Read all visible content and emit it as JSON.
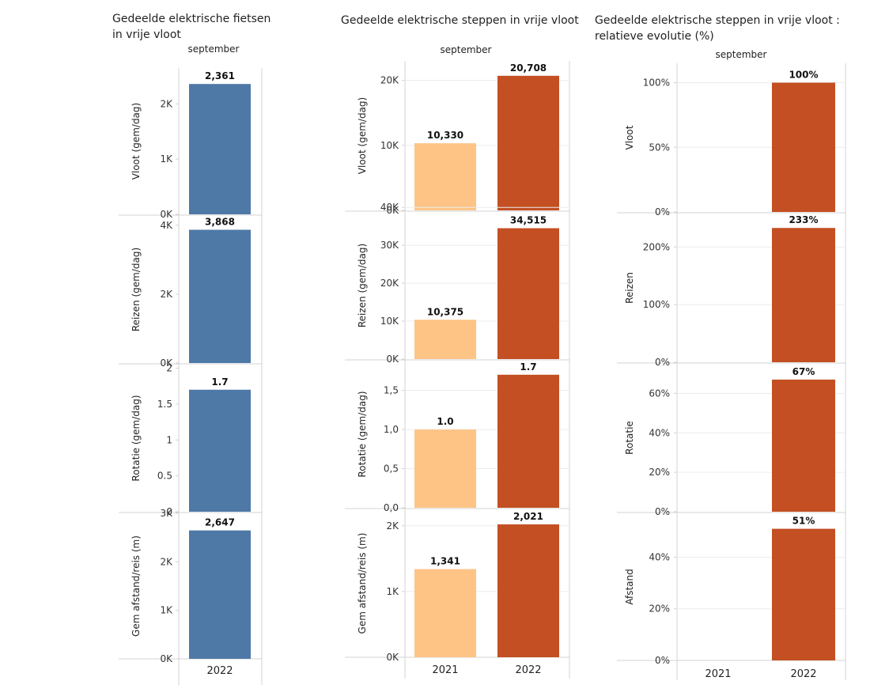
{
  "colors": {
    "blue": "#4e79a7",
    "light_orange": "#fdc486",
    "dark_orange": "#c34f22",
    "axis_line": "#d3d3d3",
    "grid": "#ececec"
  },
  "chart_data": [
    {
      "id": "fietsen",
      "type": "bar",
      "title_lines": [
        "Gedeelde elektrische fietsen",
        "in vrije vloot"
      ],
      "period": "september",
      "categories": [
        "2022"
      ],
      "panels": [
        {
          "ylabel": "Vloot (gem/dag)",
          "ylim": [
            0,
            2650
          ],
          "ticks": [
            0,
            1000,
            2000
          ],
          "tick_labels": [
            "0K",
            "1K",
            "2K"
          ],
          "values": [
            2361
          ],
          "value_labels": [
            "2,361"
          ],
          "colors": [
            "blue"
          ]
        },
        {
          "ylabel": "Reizen (gem/dag)",
          "ylim": [
            0,
            4270
          ],
          "ticks": [
            0,
            2000,
            4000
          ],
          "tick_labels": [
            "0K",
            "2K",
            "4K"
          ],
          "values": [
            3868
          ],
          "value_labels": [
            "3,868"
          ],
          "colors": [
            "blue"
          ]
        },
        {
          "ylabel": "Rotatie (gem/dag)",
          "ylim": [
            0,
            2.05
          ],
          "ticks": [
            0,
            0.5,
            1,
            1.5,
            2
          ],
          "tick_labels": [
            "0",
            "0.5",
            "1",
            "1.5",
            "2"
          ],
          "values": [
            1.7
          ],
          "value_labels": [
            "1.7"
          ],
          "colors": [
            "blue"
          ]
        },
        {
          "ylabel": "Gem afstand/reis (m)",
          "ylim": [
            0,
            3000
          ],
          "ticks": [
            0,
            1000,
            2000,
            3000
          ],
          "tick_labels": [
            "0K",
            "1K",
            "2K",
            "3K"
          ],
          "values": [
            2647
          ],
          "value_labels": [
            "2,647"
          ],
          "colors": [
            "blue"
          ]
        }
      ]
    },
    {
      "id": "steppen",
      "type": "bar",
      "title_lines": [
        "Gedeelde elektrische steppen in vrije vloot"
      ],
      "period": "september",
      "categories": [
        "2021",
        "2022"
      ],
      "panels": [
        {
          "ylabel": "Vloot (gem/dag)",
          "ylim": [
            0,
            23000
          ],
          "ticks": [
            0,
            10000,
            20000
          ],
          "tick_labels": [
            "0K",
            "10K",
            "20K"
          ],
          "values": [
            10330,
            20708
          ],
          "value_labels": [
            "10,330",
            "20,708"
          ],
          "colors": [
            "light_orange",
            "dark_orange"
          ]
        },
        {
          "ylabel": "Reizen (gem/dag)",
          "ylim": [
            0,
            38800
          ],
          "ticks": [
            0,
            10000,
            20000,
            30000,
            40000
          ],
          "tick_labels": [
            "0K",
            "10K",
            "20K",
            "30K",
            "40K"
          ],
          "values": [
            10375,
            34515
          ],
          "value_labels": [
            "10,375",
            "34,515"
          ],
          "colors": [
            "light_orange",
            "dark_orange"
          ]
        },
        {
          "ylabel": "Rotatie (gem/dag)",
          "ylim": [
            0,
            1.88
          ],
          "ticks": [
            0,
            0.5,
            1.0,
            1.5
          ],
          "tick_labels": [
            "0,0",
            "0,5",
            "1,0",
            "1,5"
          ],
          "values": [
            1.0,
            1.7
          ],
          "value_labels": [
            "1.0",
            "1.7"
          ],
          "colors": [
            "light_orange",
            "dark_orange"
          ]
        },
        {
          "ylabel": "Gem afstand/reis (m)",
          "ylim": [
            0,
            2250
          ],
          "ticks": [
            0,
            1000,
            2000
          ],
          "tick_labels": [
            "0K",
            "1K",
            "2K"
          ],
          "values": [
            1341,
            2021
          ],
          "value_labels": [
            "1,341",
            "2,021"
          ],
          "colors": [
            "light_orange",
            "dark_orange"
          ]
        }
      ]
    },
    {
      "id": "evolutie",
      "type": "bar",
      "title_lines": [
        "Gedeelde elektrische steppen in vrije vloot :",
        "relatieve evolutie (%)"
      ],
      "period": "september",
      "categories": [
        "2021",
        "2022"
      ],
      "panels": [
        {
          "ylabel": "Vloot",
          "ylim": [
            0,
            115
          ],
          "ticks": [
            0,
            50,
            100
          ],
          "tick_labels": [
            "0%",
            "50%",
            "100%"
          ],
          "values": [
            null,
            100
          ],
          "value_labels": [
            "",
            "100%"
          ],
          "colors": [
            "dark_orange",
            "dark_orange"
          ]
        },
        {
          "ylabel": "Reizen",
          "ylim": [
            0,
            258
          ],
          "ticks": [
            0,
            100,
            200
          ],
          "tick_labels": [
            "0%",
            "100%",
            "200%"
          ],
          "values": [
            null,
            233
          ],
          "value_labels": [
            "",
            "233%"
          ],
          "colors": [
            "dark_orange",
            "dark_orange"
          ]
        },
        {
          "ylabel": "Rotatie",
          "ylim": [
            0,
            75
          ],
          "ticks": [
            0,
            20,
            40,
            60
          ],
          "tick_labels": [
            "0%",
            "20%",
            "40%",
            "60%"
          ],
          "values": [
            null,
            67
          ],
          "value_labels": [
            "",
            "67%"
          ],
          "colors": [
            "dark_orange",
            "dark_orange"
          ]
        },
        {
          "ylabel": "Afstand",
          "ylim": [
            0,
            57
          ],
          "ticks": [
            0,
            20,
            40
          ],
          "tick_labels": [
            "0%",
            "20%",
            "40%"
          ],
          "values": [
            null,
            51
          ],
          "value_labels": [
            "",
            "51%"
          ],
          "colors": [
            "dark_orange",
            "dark_orange"
          ]
        }
      ]
    }
  ]
}
